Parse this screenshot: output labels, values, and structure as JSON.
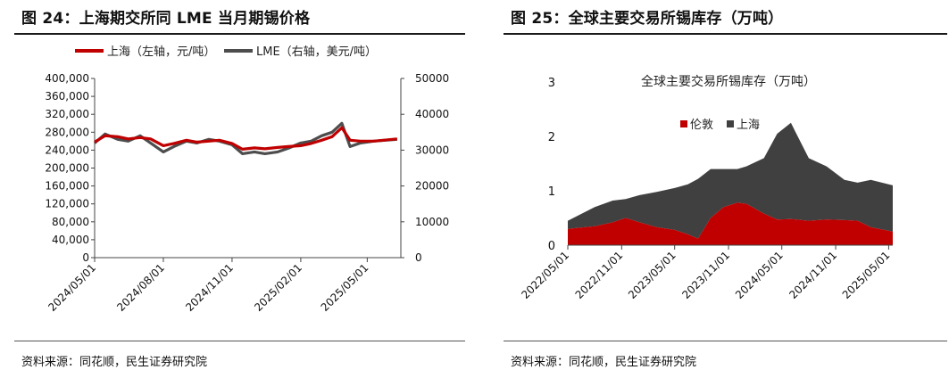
{
  "figures": [
    {
      "title": "图 24：上海期交所同 LME 当月期锡价格",
      "source": "资料来源：同花顺，民生证券研究院"
    },
    {
      "title": "图 25：全球主要交易所锡库存（万吨）",
      "source": "资料来源：同花顺，民生证券研究院"
    }
  ],
  "chart_data": [
    {
      "type": "line",
      "title": "",
      "x_tick_labels": [
        "2024/05/01",
        "2024/08/01",
        "2024/11/01",
        "2025/02/01",
        "2025/05/01"
      ],
      "x_range": [
        "2024/05/01",
        "2025/06/15"
      ],
      "y_left_ticks": [
        "0",
        "40,000",
        "80,000",
        "120,000",
        "160,000",
        "200,000",
        "240,000",
        "280,000",
        "320,000",
        "360,000",
        "400,000"
      ],
      "y_left_range": [
        0,
        400000
      ],
      "y_right_ticks": [
        "0",
        "10000",
        "20000",
        "30000",
        "40000",
        "50000"
      ],
      "y_right_range": [
        0,
        50000
      ],
      "legend_position": "top",
      "grid": false,
      "series": [
        {
          "name": "上海（左轴，元/吨）",
          "axis": "left",
          "color": "#c00000",
          "points": [
            [
              "2024/05/01",
              258000
            ],
            [
              "2024/05/15",
              272000
            ],
            [
              "2024/06/01",
              270000
            ],
            [
              "2024/06/15",
              265000
            ],
            [
              "2024/07/01",
              268000
            ],
            [
              "2024/07/15",
              265000
            ],
            [
              "2024/08/01",
              250000
            ],
            [
              "2024/08/15",
              255000
            ],
            [
              "2024/09/01",
              262000
            ],
            [
              "2024/09/15",
              258000
            ],
            [
              "2024/10/01",
              260000
            ],
            [
              "2024/10/15",
              262000
            ],
            [
              "2024/11/01",
              255000
            ],
            [
              "2024/11/15",
              242000
            ],
            [
              "2024/12/01",
              245000
            ],
            [
              "2024/12/15",
              243000
            ],
            [
              "2025/01/01",
              246000
            ],
            [
              "2025/01/15",
              248000
            ],
            [
              "2025/02/01",
              250000
            ],
            [
              "2025/02/15",
              255000
            ],
            [
              "2025/03/01",
              262000
            ],
            [
              "2025/03/15",
              270000
            ],
            [
              "2025/03/28",
              290000
            ],
            [
              "2025/04/08",
              262000
            ],
            [
              "2025/04/22",
              260000
            ],
            [
              "2025/05/10",
              260000
            ],
            [
              "2025/06/10",
              265000
            ]
          ]
        },
        {
          "name": "LME（右轴，美元/吨）",
          "axis": "right",
          "color": "#4d4d4d",
          "points": [
            [
              "2024/05/01",
              32000
            ],
            [
              "2024/05/15",
              34500
            ],
            [
              "2024/06/01",
              33000
            ],
            [
              "2024/06/15",
              32500
            ],
            [
              "2024/07/01",
              34000
            ],
            [
              "2024/07/15",
              32000
            ],
            [
              "2024/08/01",
              29500
            ],
            [
              "2024/08/15",
              31000
            ],
            [
              "2024/09/01",
              32500
            ],
            [
              "2024/09/15",
              32000
            ],
            [
              "2024/10/01",
              33000
            ],
            [
              "2024/10/15",
              32500
            ],
            [
              "2024/11/01",
              31500
            ],
            [
              "2024/11/15",
              29000
            ],
            [
              "2024/12/01",
              29500
            ],
            [
              "2024/12/15",
              29000
            ],
            [
              "2025/01/01",
              29500
            ],
            [
              "2025/01/15",
              30500
            ],
            [
              "2025/02/01",
              32000
            ],
            [
              "2025/02/15",
              32500
            ],
            [
              "2025/03/01",
              34000
            ],
            [
              "2025/03/15",
              35000
            ],
            [
              "2025/03/28",
              37500
            ],
            [
              "2025/04/08",
              31000
            ],
            [
              "2025/04/22",
              32000
            ],
            [
              "2025/05/10",
              32500
            ],
            [
              "2025/06/10",
              33000
            ]
          ]
        }
      ]
    },
    {
      "type": "area",
      "title": "全球主要交易所锡库存（万吨）",
      "stacked": true,
      "x_tick_labels": [
        "2022/05/01",
        "2022/11/01",
        "2023/05/01",
        "2023/11/01",
        "2024/05/01",
        "2024/11/01",
        "2025/05/01"
      ],
      "x_range": [
        "2022/05/01",
        "2025/05/15"
      ],
      "y_ticks": [
        "0",
        "1",
        "2",
        "3"
      ],
      "ylim": [
        0,
        3
      ],
      "legend_position": "top",
      "grid": false,
      "series": [
        {
          "name": "伦敦",
          "color": "#c00000",
          "points": [
            [
              "2022/05/01",
              0.3
            ],
            [
              "2022/08/01",
              0.35
            ],
            [
              "2022/10/01",
              0.42
            ],
            [
              "2022/11/15",
              0.5
            ],
            [
              "2023/01/01",
              0.42
            ],
            [
              "2023/03/01",
              0.33
            ],
            [
              "2023/05/01",
              0.28
            ],
            [
              "2023/06/15",
              0.2
            ],
            [
              "2023/07/20",
              0.12
            ],
            [
              "2023/09/01",
              0.5
            ],
            [
              "2023/10/15",
              0.7
            ],
            [
              "2023/12/01",
              0.78
            ],
            [
              "2024/01/01",
              0.76
            ],
            [
              "2024/03/01",
              0.58
            ],
            [
              "2024/04/15",
              0.47
            ],
            [
              "2024/06/01",
              0.48
            ],
            [
              "2024/08/01",
              0.45
            ],
            [
              "2024/10/01",
              0.47
            ],
            [
              "2024/12/01",
              0.46
            ],
            [
              "2025/01/15",
              0.45
            ],
            [
              "2025/03/01",
              0.33
            ],
            [
              "2025/05/15",
              0.25
            ]
          ]
        },
        {
          "name": "上海",
          "color": "#404040",
          "points": [
            [
              "2022/05/01",
              0.15
            ],
            [
              "2022/08/01",
              0.35
            ],
            [
              "2022/10/01",
              0.4
            ],
            [
              "2022/11/15",
              0.35
            ],
            [
              "2023/01/01",
              0.5
            ],
            [
              "2023/03/01",
              0.65
            ],
            [
              "2023/05/01",
              0.77
            ],
            [
              "2023/06/15",
              0.92
            ],
            [
              "2023/07/20",
              1.1
            ],
            [
              "2023/09/01",
              0.9
            ],
            [
              "2023/10/15",
              0.7
            ],
            [
              "2023/12/01",
              0.62
            ],
            [
              "2024/01/01",
              0.69
            ],
            [
              "2024/03/01",
              1.02
            ],
            [
              "2024/04/15",
              1.58
            ],
            [
              "2024/06/01",
              1.77
            ],
            [
              "2024/08/01",
              1.15
            ],
            [
              "2024/10/01",
              0.98
            ],
            [
              "2024/12/01",
              0.74
            ],
            [
              "2025/01/15",
              0.7
            ],
            [
              "2025/03/01",
              0.87
            ],
            [
              "2025/05/15",
              0.85
            ]
          ]
        }
      ]
    }
  ]
}
